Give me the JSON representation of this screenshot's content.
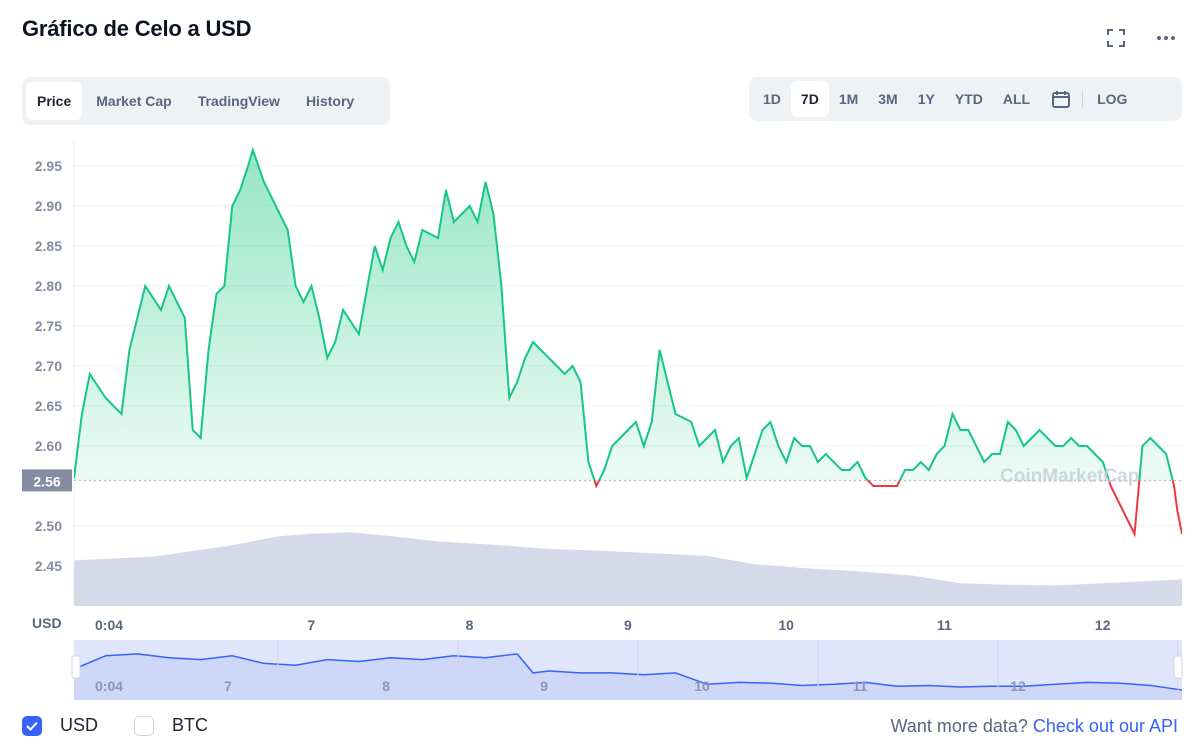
{
  "title": "Gráfico de Celo a USD",
  "icons": {
    "fullscreen": "fullscreen-icon",
    "more": "more-horizontal-icon",
    "calendar": "calendar-icon"
  },
  "tabs": [
    {
      "label": "Price",
      "active": true
    },
    {
      "label": "Market Cap",
      "active": false
    },
    {
      "label": "TradingView",
      "active": false
    },
    {
      "label": "History",
      "active": false
    }
  ],
  "ranges": [
    {
      "label": "1D",
      "active": false
    },
    {
      "label": "7D",
      "active": true
    },
    {
      "label": "1M",
      "active": false
    },
    {
      "label": "3M",
      "active": false
    },
    {
      "label": "1Y",
      "active": false
    },
    {
      "label": "YTD",
      "active": false
    },
    {
      "label": "ALL",
      "active": false
    }
  ],
  "log_label": "LOG",
  "colors": {
    "up": "#16c784",
    "down": "#ea3943",
    "accent": "#3861fb",
    "volume": "#cfd6e4"
  },
  "chart_data": {
    "type": "line",
    "currency_label": "USD",
    "current_price_label": "2.56",
    "reference_price": 2.557,
    "ylim": [
      2.4,
      2.97
    ],
    "yticks": [
      "2.95",
      "2.90",
      "2.85",
      "2.80",
      "2.75",
      "2.70",
      "2.65",
      "2.60",
      "2.50",
      "2.45"
    ],
    "xlim": [
      0,
      7
    ],
    "xticks": [
      {
        "x": 0.0,
        "label": "0:04"
      },
      {
        "x": 1.0,
        "label": "7"
      },
      {
        "x": 2.0,
        "label": "8"
      },
      {
        "x": 3.0,
        "label": "9"
      },
      {
        "x": 4.0,
        "label": "10"
      },
      {
        "x": 5.0,
        "label": "11"
      },
      {
        "x": 6.0,
        "label": "12"
      }
    ],
    "grid": true,
    "watermark": "CoinMarketCap",
    "series": [
      {
        "values_x": [
          0,
          0.05,
          0.1,
          0.2,
          0.3,
          0.35,
          0.45,
          0.55,
          0.6,
          0.7,
          0.75,
          0.8,
          0.85,
          0.9,
          0.95,
          1.0,
          1.05,
          1.1,
          1.13,
          1.2,
          1.25,
          1.3,
          1.35,
          1.4,
          1.45,
          1.5,
          1.55,
          1.6,
          1.65,
          1.7,
          1.8,
          1.9,
          1.95,
          2.0,
          2.05,
          2.1,
          2.15,
          2.2,
          2.3,
          2.35,
          2.4,
          2.5,
          2.55,
          2.6,
          2.65,
          2.7,
          2.75,
          2.8,
          2.85,
          2.9,
          2.95,
          3.0,
          3.05,
          3.1,
          3.15,
          3.2,
          3.25,
          3.3,
          3.35,
          3.4,
          3.45,
          3.5,
          3.55,
          3.6,
          3.65,
          3.7,
          3.8,
          3.9,
          3.95,
          4.0,
          4.05,
          4.1,
          4.15,
          4.2,
          4.25,
          4.3,
          4.35,
          4.4,
          4.45,
          4.5,
          4.55,
          4.6,
          4.65,
          4.7,
          4.75,
          4.8,
          4.85,
          4.9,
          4.95,
          5.0,
          5.05,
          5.1,
          5.15,
          5.2,
          5.25,
          5.3,
          5.35,
          5.4,
          5.45,
          5.5,
          5.55,
          5.6,
          5.65,
          5.7,
          5.75,
          5.8,
          5.85,
          5.9,
          5.95,
          6.0,
          6.05,
          6.1,
          6.15,
          6.2,
          6.25,
          6.3,
          6.35,
          6.4,
          6.45,
          6.5,
          6.55,
          6.6,
          6.65,
          6.7,
          6.75,
          6.8,
          6.85,
          6.9,
          6.95,
          6.97,
          7.0
        ],
        "values_y": [
          2.56,
          2.64,
          2.69,
          2.66,
          2.64,
          2.72,
          2.8,
          2.77,
          2.8,
          2.76,
          2.62,
          2.61,
          2.72,
          2.79,
          2.8,
          2.9,
          2.92,
          2.95,
          2.97,
          2.93,
          2.91,
          2.89,
          2.87,
          2.8,
          2.78,
          2.8,
          2.76,
          2.71,
          2.73,
          2.77,
          2.74,
          2.85,
          2.82,
          2.86,
          2.88,
          2.85,
          2.83,
          2.87,
          2.86,
          2.92,
          2.88,
          2.9,
          2.88,
          2.93,
          2.89,
          2.8,
          2.66,
          2.68,
          2.71,
          2.73,
          2.72,
          2.71,
          2.7,
          2.69,
          2.7,
          2.68,
          2.58,
          2.55,
          2.57,
          2.6,
          2.61,
          2.62,
          2.63,
          2.6,
          2.63,
          2.72,
          2.64,
          2.63,
          2.6,
          2.61,
          2.62,
          2.58,
          2.6,
          2.61,
          2.56,
          2.59,
          2.62,
          2.63,
          2.6,
          2.58,
          2.61,
          2.6,
          2.6,
          2.58,
          2.59,
          2.58,
          2.57,
          2.57,
          2.58,
          2.56,
          2.55,
          2.55,
          2.55,
          2.55,
          2.57,
          2.57,
          2.58,
          2.57,
          2.59,
          2.6,
          2.64,
          2.62,
          2.62,
          2.6,
          2.58,
          2.59,
          2.59,
          2.63,
          2.62,
          2.6,
          2.61,
          2.62,
          2.61,
          2.6,
          2.6,
          2.61,
          2.6,
          2.6,
          2.59,
          2.58,
          2.55,
          2.53,
          2.51,
          2.49,
          2.6,
          2.61,
          2.6,
          2.59,
          2.55,
          2.52,
          2.49
        ]
      }
    ],
    "volume": {
      "values_x": [
        0,
        0.5,
        1.0,
        1.3,
        1.5,
        1.75,
        2.0,
        2.3,
        2.7,
        3.0,
        3.3,
        3.6,
        4.0,
        4.3,
        4.6,
        5.0,
        5.3,
        5.6,
        5.9,
        6.2,
        6.5,
        6.8,
        7.0
      ],
      "values": [
        0.6,
        0.65,
        0.8,
        0.92,
        0.95,
        0.97,
        0.92,
        0.85,
        0.8,
        0.75,
        0.73,
        0.7,
        0.66,
        0.55,
        0.5,
        0.45,
        0.4,
        0.3,
        0.28,
        0.27,
        0.3,
        0.33,
        0.35
      ]
    },
    "navigator": {
      "xticks": [
        "0:04",
        "7",
        "8",
        "9",
        "10",
        "11",
        "12"
      ],
      "values_x": [
        0,
        0.2,
        0.4,
        0.6,
        0.8,
        1.0,
        1.2,
        1.4,
        1.6,
        1.8,
        2.0,
        2.2,
        2.4,
        2.6,
        2.8,
        2.9,
        3.0,
        3.2,
        3.4,
        3.6,
        3.8,
        4.0,
        4.2,
        4.4,
        4.6,
        4.8,
        5.0,
        5.2,
        5.4,
        5.6,
        5.8,
        6.0,
        6.2,
        6.4,
        6.6,
        6.8,
        7.0
      ],
      "values": [
        0.55,
        0.9,
        0.95,
        0.85,
        0.8,
        0.9,
        0.7,
        0.65,
        0.8,
        0.75,
        0.85,
        0.8,
        0.9,
        0.85,
        0.95,
        0.45,
        0.5,
        0.45,
        0.45,
        0.4,
        0.45,
        0.15,
        0.2,
        0.18,
        0.12,
        0.15,
        0.2,
        0.1,
        0.12,
        0.08,
        0.1,
        0.1,
        0.15,
        0.2,
        0.18,
        0.12,
        0.0
      ]
    }
  },
  "footer": {
    "usd_label": "USD",
    "btc_label": "BTC",
    "usd_checked": true,
    "btc_checked": false,
    "api_prefix": "Want more data?",
    "api_link": "Check out our API"
  }
}
